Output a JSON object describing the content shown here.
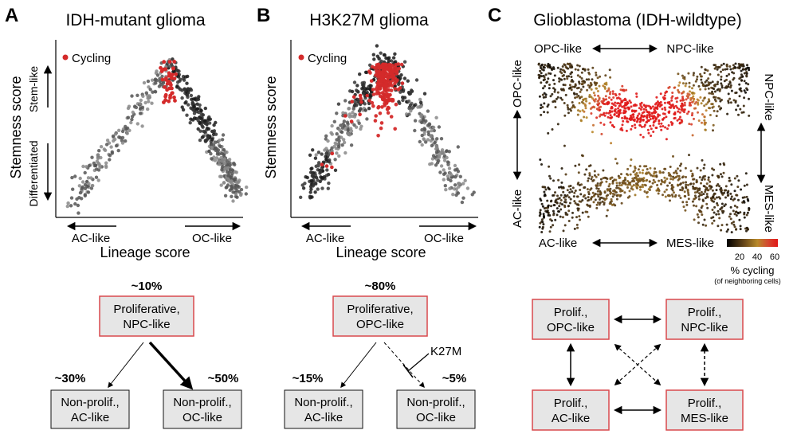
{
  "panels": {
    "a": {
      "letter": "A",
      "title": "IDH-mutant glioma",
      "legend": "Cycling",
      "ylabel": "Stemness score",
      "xlabel": "Lineage score",
      "stem_label": "Stem-like",
      "diff_label": "Differentiated",
      "left_label": "AC-like",
      "right_label": "OC-like",
      "top_pct": "~10%",
      "top_box": [
        "Proliferative,",
        "NPC-like"
      ],
      "left_pct": "~30%",
      "left_box": [
        "Non-prolif.,",
        "AC-like"
      ],
      "right_pct": "~50%",
      "right_box": [
        "Non-prolif.,",
        "OC-like"
      ]
    },
    "b": {
      "letter": "B",
      "title": "H3K27M glioma",
      "legend": "Cycling",
      "ylabel": "Stemness score",
      "xlabel": "Lineage score",
      "left_label": "AC-like",
      "right_label": "OC-like",
      "top_pct": "~80%",
      "top_box": [
        "Proliferative,",
        "OPC-like"
      ],
      "left_pct": "~15%",
      "left_box": [
        "Non-prolif.,",
        "AC-like"
      ],
      "right_pct": "~5%",
      "right_box": [
        "Non-prolif.,",
        "OC-like"
      ],
      "inhibitor": "K27M"
    },
    "c": {
      "letter": "C",
      "title": "Glioblastoma (IDH-wildtype)",
      "top_left": "OPC-like",
      "top_right": "NPC-like",
      "bottom_left": "AC-like",
      "bottom_right": "MES-like",
      "left_top": "OPC-like",
      "left_bottom": "AC-like",
      "right_top": "NPC-like",
      "right_bottom": "MES-like",
      "colorbar_ticks": [
        "20",
        "40",
        "60"
      ],
      "colorbar_label": "% cycling",
      "colorbar_sublabel": "(of neighboring cells)",
      "boxes": {
        "opc": [
          "Prolif.,",
          "OPC-like"
        ],
        "npc": [
          "Prolif.,",
          "NPC-like"
        ],
        "ac": [
          "Prolif.,",
          "AC-like"
        ],
        "mes": [
          "Prolif.,",
          "MES-like"
        ]
      }
    }
  },
  "colors": {
    "cycling": "#d42a2a",
    "cell": "#333333",
    "box_border": "#d9484d",
    "box_fill": "#e6e6e6"
  }
}
